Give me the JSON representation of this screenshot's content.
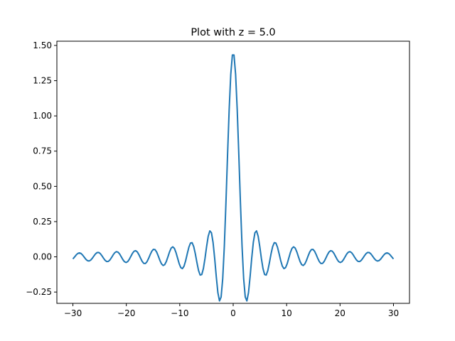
{
  "colors": {
    "series_line": "#1f77b4",
    "axes": "#000000",
    "background": "#ffffff"
  },
  "chart_data": {
    "type": "line",
    "title": "Plot with z = 5.0",
    "xlabel": "",
    "ylabel": "",
    "xlim": [
      -33,
      33
    ],
    "ylim": [
      -0.33,
      1.53
    ],
    "grid": false,
    "legend": "none",
    "x_ticks": [
      -30,
      -20,
      -10,
      0,
      10,
      20,
      30
    ],
    "x_tick_labels": [
      "−30",
      "−20",
      "−10",
      "0",
      "10",
      "20",
      "30"
    ],
    "y_ticks": [
      -0.25,
      0.0,
      0.25,
      0.5,
      0.75,
      1.0,
      1.25,
      1.5
    ],
    "y_tick_labels": [
      "−0.25",
      "0.00",
      "0.25",
      "0.50",
      "0.75",
      "1.00",
      "1.25",
      "1.50"
    ],
    "series": [
      {
        "x_range": [
          -30,
          30
        ],
        "points": 200,
        "peak_value": 1.45,
        "min_value": -0.26,
        "description": "damped symmetric oscillation centered at x = 0"
      }
    ]
  }
}
